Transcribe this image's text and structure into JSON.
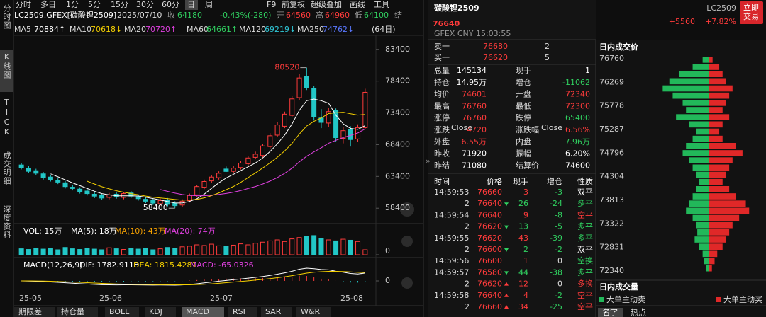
{
  "toolbar": {
    "periods": [
      "分时",
      "多日",
      "1分",
      "5分",
      "15分",
      "30分",
      "60分",
      "日",
      "周"
    ],
    "selected": 7,
    "tools": [
      "F9",
      "前复权",
      "超级叠加",
      "画线",
      "工具"
    ]
  },
  "side_tabs": [
    "分时图",
    "K线图",
    "TICK",
    "成交明细",
    "深度资料"
  ],
  "side_selected": 1,
  "info": {
    "symbol": "LC2509.GFEX[碳酸锂2509]",
    "date": "2025/07/10",
    "close_label": "收",
    "close": 64180,
    "change": "-0.43%(-280)",
    "open_label": "开",
    "open": 64560,
    "high_label": "高",
    "high": 64960,
    "low_label": "低",
    "low": 64100,
    "settle_label": "结"
  },
  "ma": [
    {
      "name": "MA5",
      "value": "70884↑",
      "color": "#ffffff"
    },
    {
      "name": "MA10",
      "value": "70618↓",
      "color": "#f5d000"
    },
    {
      "name": "MA20",
      "value": "70720↑",
      "color": "#e040e0"
    },
    {
      "name": "MA60",
      "value": "64661↑",
      "color": "#30d060"
    },
    {
      "name": "MA120",
      "value": "69219↓",
      "color": "#30c8d8"
    },
    {
      "name": "MA250",
      "value": "74762↓",
      "color": "#5a78ff"
    }
  ],
  "ma_period": "(64日)",
  "kline": {
    "type": "candlestick",
    "up_color": "#ff3b3b",
    "down_color": "#22c7c7",
    "open": [
      65200,
      64700,
      64300,
      63800,
      63300,
      62800,
      62400,
      61700,
      61400,
      61100,
      60600,
      60400,
      60100,
      60600,
      60100,
      60800,
      60200,
      59800,
      59600,
      59100,
      59700,
      59200,
      58900,
      59600,
      60500,
      61700,
      62700,
      63200,
      64560,
      64200,
      64800,
      65400,
      66400,
      66700,
      68100,
      69900,
      71300,
      73000,
      75800,
      79100,
      77200,
      72600,
      71800,
      73800,
      69400,
      70800,
      69300,
      71080
    ],
    "high": [
      65500,
      65000,
      64600,
      64100,
      63600,
      63100,
      62700,
      62000,
      61700,
      61400,
      60900,
      60700,
      60800,
      60900,
      60900,
      61100,
      60500,
      60100,
      59900,
      59900,
      60000,
      59500,
      59800,
      60700,
      62100,
      62900,
      63600,
      64200,
      64960,
      65000,
      65800,
      66600,
      67300,
      68500,
      70200,
      71900,
      73600,
      76100,
      79500,
      80520,
      77600,
      74000,
      74200,
      74100,
      71200,
      71300,
      71600,
      77200
    ],
    "low": [
      64500,
      63900,
      63600,
      62900,
      62600,
      62200,
      61500,
      61200,
      60700,
      60400,
      60000,
      59700,
      59800,
      59900,
      59800,
      60000,
      59600,
      59200,
      58900,
      58800,
      58700,
      58400,
      58600,
      59300,
      60200,
      61400,
      62400,
      62900,
      64100,
      63900,
      64500,
      65100,
      66100,
      66400,
      67800,
      69600,
      71000,
      72700,
      75400,
      77000,
      72200,
      71000,
      71200,
      68900,
      68600,
      68100,
      68800,
      70900
    ],
    "close": [
      64800,
      64200,
      63900,
      63200,
      62900,
      62500,
      61800,
      61500,
      61000,
      60700,
      60300,
      60000,
      60500,
      60200,
      60700,
      60300,
      59900,
      59500,
      59200,
      59600,
      59000,
      58800,
      59500,
      60400,
      61800,
      62600,
      63300,
      63900,
      64180,
      64700,
      65500,
      66300,
      66900,
      68200,
      69800,
      71500,
      73200,
      75600,
      78900,
      77400,
      72800,
      71900,
      73600,
      69500,
      70600,
      69200,
      71080,
      76640
    ],
    "ylim": [
      57200,
      85600
    ],
    "yticks": [
      58400,
      63400,
      68400,
      73400,
      78400,
      83400
    ],
    "annotations": [
      80520,
      58400
    ],
    "xticks": [
      "25-05",
      "25-06",
      "25-07",
      "25-08"
    ]
  },
  "volume": {
    "labels": [
      "VOL: 15万",
      "MA(5): 18万",
      "MA(10): 43万",
      "MA(20): 74万"
    ],
    "label_colors": [
      "#ffffff",
      "#ffffff",
      "#f5a000",
      "#e040e0"
    ],
    "values": [
      18,
      16,
      20,
      17,
      19,
      15,
      22,
      18,
      16,
      20,
      17,
      15,
      21,
      18,
      16,
      19,
      17,
      20,
      15,
      18,
      22,
      19,
      24,
      26,
      30,
      28,
      32,
      27,
      25,
      29,
      33,
      30,
      35,
      38,
      42,
      45,
      40,
      48,
      52,
      55,
      58,
      50,
      45,
      42,
      47,
      44,
      40,
      15
    ],
    "ylim": [
      0,
      60
    ],
    "yticks": [
      0
    ]
  },
  "macd": {
    "labels": [
      "MACD(12,26,9)",
      "DIF: 1782.9118",
      "DEA: 1815.4281",
      "MACD: -65.0326"
    ],
    "label_colors": [
      "#ffffff",
      "#ffffff",
      "#f5d000",
      "#e040e0"
    ],
    "yticks": [
      0
    ]
  },
  "bottom_tabs": [
    "期限差",
    "持仓量",
    "BOLL",
    "KDJ",
    "MACD",
    "RSI",
    "SAR",
    "W&R"
  ],
  "bottom_selected": 4,
  "quote": {
    "name": "碳酸锂2509",
    "price": 76640,
    "exchange": "GFEX  CNY  15:03:55",
    "code": "LC2509",
    "change": "+5560",
    "change_pct": "+7.82%",
    "trade_button": "立即交易",
    "book": [
      {
        "label": "卖一",
        "price": 76680,
        "volume": 2
      },
      {
        "label": "买一",
        "price": 76620,
        "volume": 5
      }
    ],
    "stats": [
      {
        "l": "总量",
        "v": 145134,
        "c": "#ffffff",
        "l2": "现手",
        "v2": 1,
        "c2": "#ffffff"
      },
      {
        "l": "持仓",
        "v": "14.95万",
        "c": "#ffffff",
        "l2": "增仓",
        "v2": -11062,
        "c2": "#30d060"
      },
      {
        "l": "均价",
        "v": 74601,
        "c": "#ff3b3b",
        "l2": "开盘",
        "v2": 72340,
        "c2": "#ff3b3b"
      },
      {
        "l": "最高",
        "v": 76760,
        "c": "#ff3b3b",
        "l2": "最低",
        "v2": 72300,
        "c2": "#ff3b3b"
      },
      {
        "l": "涨停",
        "v": 76760,
        "c": "#ff3b3b",
        "l2": "跌停",
        "v2": 65400,
        "c2": "#30d060"
      },
      {
        "l": "涨跌",
        "sup": "Close",
        "v": 4720,
        "c": "#ff3b3b",
        "l2": "涨跌幅",
        "sup2": "Close",
        "v2": "6.56%",
        "c2": "#ff3b3b"
      },
      {
        "l": "外盘",
        "v": "6.55万",
        "c": "#ff3b3b",
        "l2": "内盘",
        "v2": "7.96万",
        "c2": "#30d060"
      },
      {
        "l": "昨收",
        "v": 71920,
        "c": "#ffffff",
        "l2": "振幅",
        "v2": "6.20%",
        "c2": "#ffffff"
      },
      {
        "l": "昨结",
        "v": 71080,
        "c": "#ffffff",
        "l2": "结算价",
        "v2": 74600,
        "c2": "#ffffff"
      }
    ],
    "ticks_header": [
      "时间",
      "价格",
      "现手",
      "增仓",
      "性质"
    ],
    "ticks": [
      {
        "time": "14:59:53",
        "price": 76660,
        "dir": null,
        "vol": 3,
        "chg": -3,
        "nature": "双平",
        "nc": "#ffffff"
      },
      {
        "time": 2,
        "price": 76640,
        "dir": "down",
        "vol": 26,
        "chg": -24,
        "nature": "多平",
        "nc": "#30d060"
      },
      {
        "time": "14:59:54",
        "price": 76640,
        "dir": null,
        "vol": 9,
        "chg": -8,
        "nature": "空平",
        "nc": "#ff3b3b"
      },
      {
        "time": 2,
        "price": 76620,
        "dir": "down",
        "vol": 13,
        "chg": -5,
        "nature": "多平",
        "nc": "#30d060"
      },
      {
        "time": "14:59:55",
        "price": 76620,
        "dir": null,
        "vol": 43,
        "chg": -39,
        "nature": "多平",
        "nc": "#30d060"
      },
      {
        "time": 2,
        "price": 76600,
        "dir": "down",
        "vol": 2,
        "chg": -2,
        "nature": "双平",
        "nc": "#ffffff"
      },
      {
        "time": "14:59:56",
        "price": 76600,
        "dir": null,
        "vol": 1,
        "chg": 0,
        "nature": "空换",
        "nc": "#30d060"
      },
      {
        "time": "14:59:57",
        "price": 76580,
        "dir": "down",
        "vol": 44,
        "chg": -38,
        "nature": "多平",
        "nc": "#30d060"
      },
      {
        "time": 2,
        "price": 76620,
        "dir": "up",
        "vol": 12,
        "chg": 0,
        "nature": "多换",
        "nc": "#ff3b3b"
      },
      {
        "time": "14:59:58",
        "price": 76640,
        "dir": "up",
        "vol": 4,
        "chg": -2,
        "nature": "空平",
        "nc": "#ff3b3b"
      },
      {
        "time": 2,
        "price": 76660,
        "dir": "up",
        "vol": 34,
        "chg": -25,
        "nature": "空平",
        "nc": "#ff3b3b"
      }
    ]
  },
  "profile": {
    "title": "日内成交价",
    "levels": [
      76760,
      76269,
      75778,
      75287,
      74796,
      74304,
      73813,
      73322,
      72831,
      72340
    ],
    "sell": [
      10,
      25,
      45,
      60,
      70,
      55,
      40,
      35,
      50,
      30,
      20,
      25,
      35,
      40,
      30,
      25,
      20,
      15,
      20,
      25,
      30,
      35,
      25,
      20,
      18,
      22,
      15,
      10,
      8,
      5
    ],
    "buy": [
      5,
      15,
      20,
      25,
      35,
      30,
      25,
      20,
      30,
      20,
      15,
      20,
      40,
      50,
      35,
      30,
      25,
      20,
      30,
      40,
      55,
      60,
      45,
      35,
      30,
      25,
      20,
      12,
      8,
      4
    ],
    "xlim": [
      0,
      80
    ],
    "sell_color": "#22b85a",
    "buy_color": "#e02828",
    "volume_title": "日内成交量",
    "legend": [
      "大单主动卖",
      "大单主动买"
    ],
    "tabs": [
      "名字",
      "热点"
    ]
  }
}
